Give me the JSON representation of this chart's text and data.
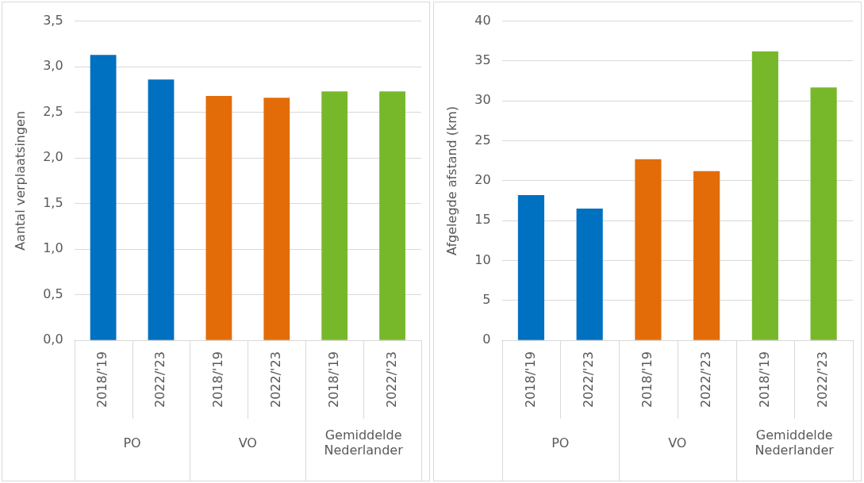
{
  "chart_data": [
    {
      "type": "bar",
      "ylabel": "Aantal verplaatsingen",
      "categories": [
        "2018/'19",
        "2022/'23",
        "2018/'19",
        "2022/'23",
        "2018/'19",
        "2022/'23"
      ],
      "values": [
        3.13,
        2.86,
        2.68,
        2.66,
        2.73,
        2.73
      ],
      "colors": [
        "#0070c0",
        "#0070c0",
        "#e36c09",
        "#e36c09",
        "#77b82a",
        "#77b82a"
      ],
      "ylim": [
        0,
        3.5
      ],
      "yticks": [
        {
          "value": 0,
          "label": "0,0"
        },
        {
          "value": 0.5,
          "label": "0,5"
        },
        {
          "value": 1,
          "label": "1,0"
        },
        {
          "value": 1.5,
          "label": "1,5"
        },
        {
          "value": 2,
          "label": "2,0"
        },
        {
          "value": 2.5,
          "label": "2,5"
        },
        {
          "value": 3,
          "label": "3,0"
        },
        {
          "value": 3.5,
          "label": "3,5"
        }
      ],
      "grid": "y",
      "legend": false,
      "annotations": [
        "PO",
        "VO",
        "Gemiddelde Nederlander"
      ]
    },
    {
      "type": "bar",
      "ylabel": "Afgelegde afstand (km)",
      "categories": [
        "2018/'19",
        "2022/'23",
        "2018/'19",
        "2022/'23",
        "2018/'19",
        "2022/'23"
      ],
      "values": [
        18.2,
        16.5,
        22.7,
        21.2,
        36.2,
        31.7
      ],
      "colors": [
        "#0070c0",
        "#0070c0",
        "#e36c09",
        "#e36c09",
        "#77b82a",
        "#77b82a"
      ],
      "ylim": [
        0,
        40
      ],
      "yticks": [
        0,
        5,
        10,
        15,
        20,
        25,
        30,
        35,
        40
      ],
      "grid": "y",
      "legend": false,
      "annotations": [
        "PO",
        "VO",
        "Gemiddelde Nederlander"
      ]
    }
  ]
}
